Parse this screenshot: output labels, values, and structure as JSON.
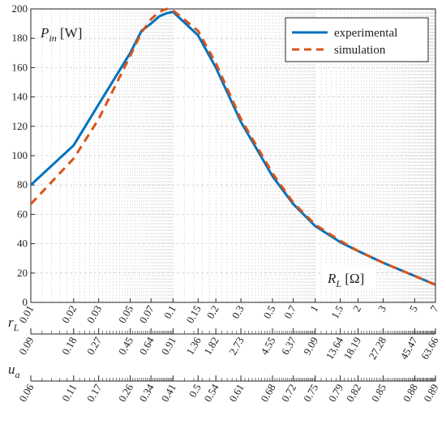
{
  "chart_data": {
    "type": "line",
    "x_scale": "log",
    "xlim": [
      0.01,
      7
    ],
    "ylim": [
      0,
      200
    ],
    "grid": true,
    "legend_position": "top-right",
    "y_ticks": [
      0,
      20,
      40,
      60,
      80,
      100,
      120,
      140,
      160,
      180,
      200
    ],
    "y_label": {
      "main": "P",
      "sub": "in",
      "unit": " [W]"
    },
    "x_label": {
      "main": "R",
      "sub": "L",
      "unit": " [Ω]"
    },
    "x_ticks": [
      0.01,
      0.02,
      0.03,
      0.05,
      0.07,
      0.1,
      0.15,
      0.2,
      0.3,
      0.5,
      0.7,
      1,
      1.5,
      2,
      3,
      5,
      7
    ],
    "x_tick_labels": [
      "0.01",
      "0.02",
      "0.03",
      "0.05",
      "0.07",
      "0.1",
      "0.15",
      "0.2",
      "0.3",
      "0.5",
      "0.7",
      "1",
      "1.5",
      "2",
      "3",
      "5",
      "7"
    ],
    "series": [
      {
        "name": "experimental",
        "color": "#0072BD",
        "style": "solid",
        "x": [
          0.01,
          0.02,
          0.03,
          0.05,
          0.06,
          0.07,
          0.08,
          0.09,
          0.1,
          0.15,
          0.2,
          0.3,
          0.5,
          0.7,
          1,
          1.5,
          2,
          3,
          5,
          7
        ],
        "y": [
          80,
          107,
          135,
          170,
          185,
          190,
          195,
          197,
          198,
          182,
          160,
          123,
          86,
          67,
          52,
          41,
          35,
          27,
          18,
          12
        ]
      },
      {
        "name": "simulation",
        "color": "#D95319",
        "style": "dashed",
        "x": [
          0.01,
          0.02,
          0.03,
          0.05,
          0.06,
          0.07,
          0.08,
          0.09,
          0.1,
          0.15,
          0.2,
          0.3,
          0.5,
          0.7,
          1,
          1.5,
          2,
          3,
          5,
          7
        ],
        "y": [
          67,
          98,
          125,
          168,
          184,
          193,
          198,
          200,
          199,
          185,
          163,
          125,
          88,
          68,
          53,
          42,
          35,
          27,
          18,
          12
        ]
      }
    ],
    "secondary_axes": [
      {
        "label": {
          "main": "r",
          "sub": "L"
        },
        "ticks_at_x": [
          0.01,
          0.02,
          0.03,
          0.05,
          0.07,
          0.1,
          0.15,
          0.2,
          0.3,
          0.5,
          0.7,
          1,
          1.5,
          2,
          3,
          5,
          7
        ],
        "tick_labels": [
          "0.09",
          "0.18",
          "0.27",
          "0.45",
          "0.64",
          "0.91",
          "1.36",
          "1.82",
          "2.73",
          "4.55",
          "6.37",
          "9.09",
          "13.64",
          "18.19",
          "27.28",
          "45.47",
          "63.66"
        ]
      },
      {
        "label": {
          "main": "u",
          "sub": "a"
        },
        "ticks_at_x": [
          0.01,
          0.02,
          0.03,
          0.05,
          0.07,
          0.1,
          0.15,
          0.2,
          0.3,
          0.5,
          0.7,
          1,
          1.5,
          2,
          3,
          5,
          7
        ],
        "tick_labels": [
          "0.06",
          "0.11",
          "0.17",
          "0.26",
          "0.34",
          "0.41",
          "0.5",
          "0.54",
          "0.61",
          "0.68",
          "0.72",
          "0.75",
          "0.79",
          "0.82",
          "0.85",
          "0.88",
          "0.89"
        ]
      }
    ]
  }
}
